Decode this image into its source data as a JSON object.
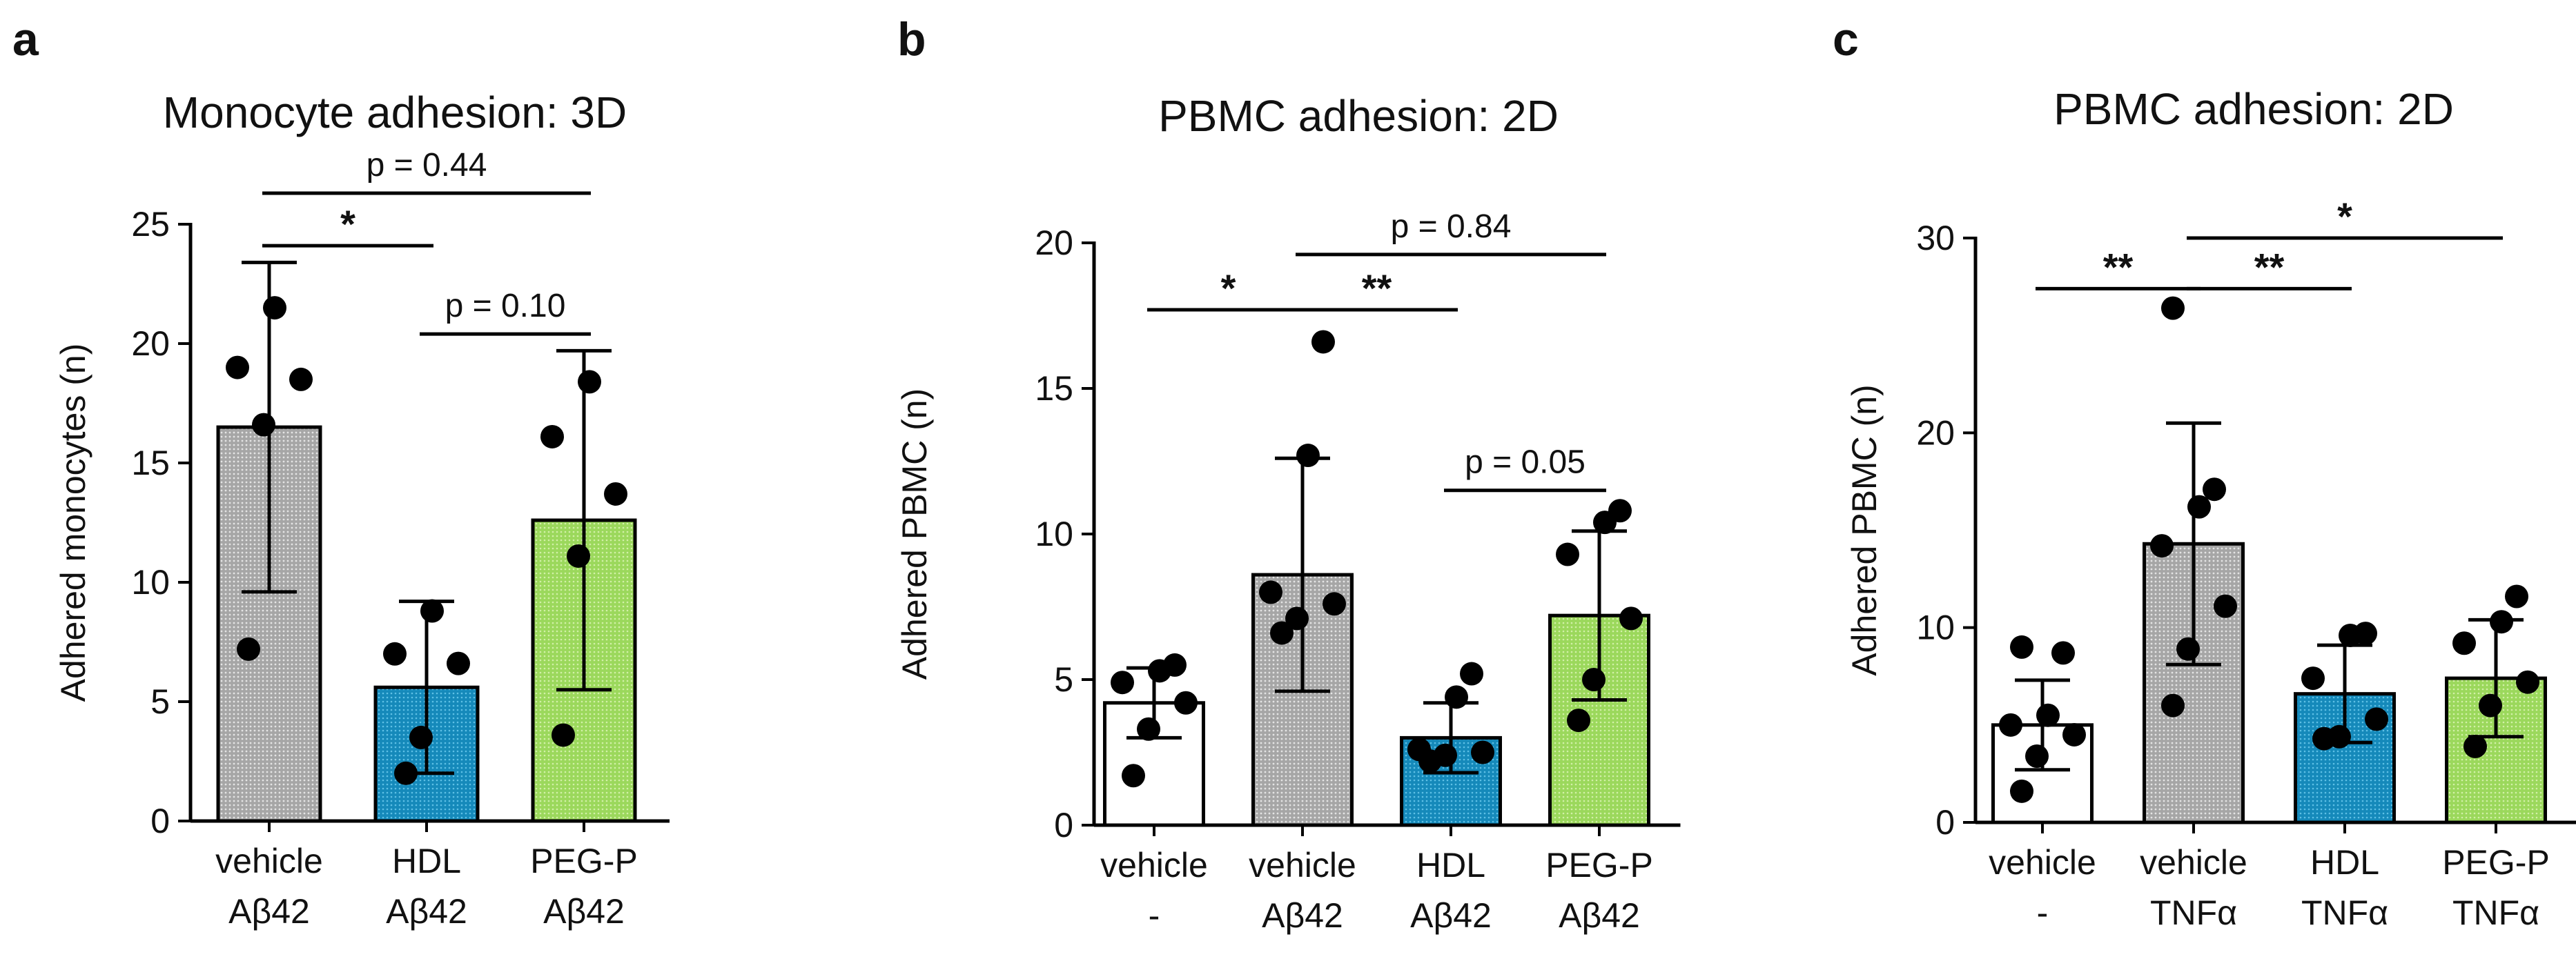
{
  "colors": {
    "vehicle": "#ffffff",
    "abeta_vehicle": "#b8b8b8",
    "hdl": "#1a8fbf",
    "peg": "#a8e06a",
    "stroke": "#000000"
  },
  "chart_data": [
    {
      "type": "bar",
      "panel": "a",
      "title": "Monocyte adhesion: 3D",
      "ylabel": "Adhered monocytes (n)",
      "xlabel": "",
      "ylim": [
        0,
        25
      ],
      "yticks": [
        0,
        5,
        10,
        15,
        20,
        25
      ],
      "categories": [
        {
          "line1": "vehicle",
          "line2": "Aβ42",
          "color_key": "abeta_vehicle"
        },
        {
          "line1": "HDL",
          "line2": "Aβ42",
          "color_key": "hdl"
        },
        {
          "line1": "PEG-P",
          "line2": "Aβ42",
          "color_key": "peg"
        }
      ],
      "values": [
        16.5,
        5.6,
        12.6
      ],
      "errors": [
        6.9,
        3.6,
        7.1
      ],
      "points": [
        [
          7.2,
          16.6,
          18.5,
          19.0,
          21.5
        ],
        [
          2.0,
          3.5,
          6.6,
          7.0,
          8.8
        ],
        [
          3.6,
          11.1,
          13.7,
          16.1,
          18.4
        ]
      ],
      "comparisons": [
        {
          "from": 0,
          "to": 1,
          "y": 24.1,
          "label": "*",
          "kind": "star"
        },
        {
          "from": 0,
          "to": 2,
          "y": 26.3,
          "label": "p = 0.44",
          "kind": "p"
        },
        {
          "from": 1,
          "to": 2,
          "y": 20.4,
          "label": "p = 0.10",
          "kind": "p"
        }
      ]
    },
    {
      "type": "bar",
      "panel": "b",
      "title": "PBMC adhesion: 2D",
      "ylabel": "Adhered PBMC (n)",
      "xlabel": "",
      "ylim": [
        0,
        20
      ],
      "yticks": [
        0,
        5,
        10,
        15,
        20
      ],
      "categories": [
        {
          "line1": "vehicle",
          "line2": "-",
          "color_key": "vehicle"
        },
        {
          "line1": "vehicle",
          "line2": "Aβ42",
          "color_key": "abeta_vehicle"
        },
        {
          "line1": "HDL",
          "line2": "Aβ42",
          "color_key": "hdl"
        },
        {
          "line1": "PEG-P",
          "line2": "Aβ42",
          "color_key": "peg"
        }
      ],
      "values": [
        4.2,
        8.6,
        3.0,
        7.2
      ],
      "errors": [
        1.2,
        4.0,
        1.2,
        2.9
      ],
      "points": [
        [
          1.7,
          3.3,
          4.2,
          4.9,
          5.3,
          5.5
        ],
        [
          6.6,
          7.1,
          7.6,
          8.0,
          12.7,
          16.6
        ],
        [
          2.2,
          2.4,
          2.5,
          2.6,
          4.4,
          5.2
        ],
        [
          3.6,
          5.0,
          7.1,
          9.3,
          10.4,
          10.8
        ]
      ],
      "comparisons": [
        {
          "from": 0,
          "to": 1,
          "y": 17.7,
          "label": "*",
          "kind": "star"
        },
        {
          "from": 1,
          "to": 2,
          "y": 17.7,
          "label": "**",
          "kind": "star"
        },
        {
          "from": 1,
          "to": 3,
          "y": 19.6,
          "label": "p = 0.84",
          "kind": "p"
        },
        {
          "from": 2,
          "to": 3,
          "y": 11.5,
          "label": "p = 0.05",
          "kind": "p"
        }
      ]
    },
    {
      "type": "bar",
      "panel": "c",
      "title": "PBMC adhesion: 2D",
      "ylabel": "Adhered PBMC (n)",
      "xlabel": "",
      "ylim": [
        0,
        30
      ],
      "yticks": [
        0,
        10,
        20,
        30
      ],
      "categories": [
        {
          "line1": "vehicle",
          "line2": "-",
          "color_key": "vehicle"
        },
        {
          "line1": "vehicle",
          "line2": "TNFα",
          "color_key": "abeta_vehicle"
        },
        {
          "line1": "HDL",
          "line2": "TNFα",
          "color_key": "hdl"
        },
        {
          "line1": "PEG-P",
          "line2": "TNFα",
          "color_key": "peg"
        }
      ],
      "values": [
        5.0,
        14.3,
        6.6,
        7.4
      ],
      "errors": [
        2.3,
        6.2,
        2.5,
        3.0
      ],
      "points": [
        [
          1.6,
          3.4,
          4.5,
          5.0,
          5.5,
          8.7,
          9.0
        ],
        [
          6.0,
          8.9,
          11.1,
          14.2,
          16.2,
          17.1,
          26.4
        ],
        [
          4.3,
          4.4,
          5.3,
          7.4,
          9.6,
          9.7
        ],
        [
          3.9,
          6.0,
          7.2,
          9.2,
          10.3,
          11.6
        ]
      ],
      "comparisons": [
        {
          "from": 0,
          "to": 1,
          "y": 27.4,
          "label": "**",
          "kind": "star"
        },
        {
          "from": 1,
          "to": 2,
          "y": 27.4,
          "label": "**",
          "kind": "star"
        },
        {
          "from": 1,
          "to": 3,
          "y": 30.0,
          "label": "*",
          "kind": "star"
        }
      ]
    }
  ]
}
